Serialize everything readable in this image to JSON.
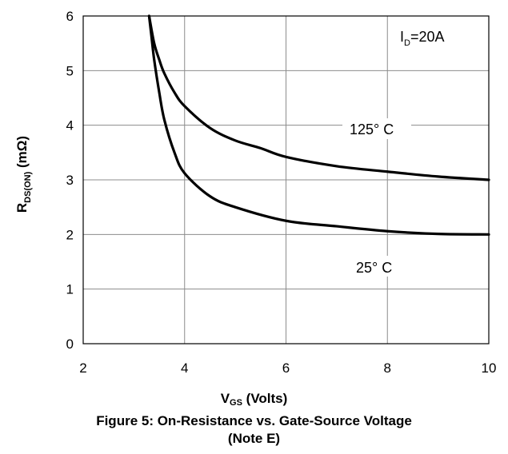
{
  "chart_data": {
    "type": "line",
    "title": "Figure 5: On-Resistance vs. Gate-Source Voltage",
    "title_note": "(Note E)",
    "xlabel": {
      "main": "V",
      "sub": "GS",
      "rest": " (Volts)"
    },
    "ylabel": {
      "main": "R",
      "sub": "DS(ON)",
      "rest": " (mΩ)"
    },
    "xlim": [
      2,
      10
    ],
    "ylim": [
      0,
      6
    ],
    "xticks": [
      2,
      4,
      6,
      8,
      10
    ],
    "yticks": [
      0,
      1,
      2,
      3,
      4,
      5,
      6
    ],
    "xgrid": [
      2,
      4,
      6,
      8,
      10
    ],
    "ygrid": [
      0,
      1,
      2,
      3,
      4,
      5,
      6
    ],
    "grid": true,
    "annotation": {
      "main": "I",
      "sub": "D",
      "rest": "=20A"
    },
    "series": [
      {
        "name": "125° C",
        "label": "125°  C",
        "x": [
          3.3,
          3.4,
          3.5,
          3.6,
          3.8,
          4.0,
          4.5,
          5.0,
          5.5,
          6.0,
          7.0,
          8.0,
          9.0,
          10.0
        ],
        "y": [
          6.0,
          5.5,
          5.2,
          4.95,
          4.6,
          4.35,
          3.95,
          3.72,
          3.58,
          3.42,
          3.25,
          3.15,
          3.06,
          3.0
        ]
      },
      {
        "name": "25° C",
        "label": "25°  C",
        "x": [
          3.3,
          3.35,
          3.4,
          3.5,
          3.6,
          3.8,
          4.0,
          4.5,
          5.0,
          6.0,
          7.0,
          8.0,
          9.0,
          10.0
        ],
        "y": [
          6.0,
          5.6,
          5.2,
          4.6,
          4.1,
          3.5,
          3.12,
          2.7,
          2.5,
          2.25,
          2.15,
          2.06,
          2.01,
          2.0
        ]
      }
    ]
  }
}
